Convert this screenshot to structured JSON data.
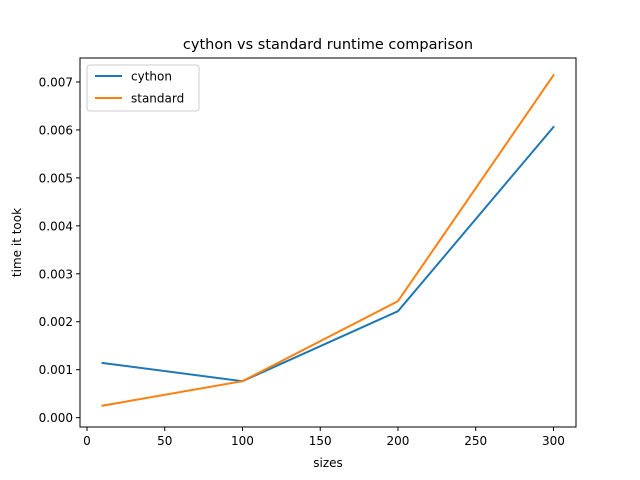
{
  "chart_data": {
    "type": "line",
    "title": "cython vs standard runtime comparison",
    "xlabel": "sizes",
    "ylabel": "time it took",
    "x": [
      10,
      100,
      200,
      300
    ],
    "series": [
      {
        "name": "cython",
        "color": "#1f77b4",
        "values": [
          0.00114,
          0.00076,
          0.00222,
          0.00606
        ]
      },
      {
        "name": "standard",
        "color": "#ff7f0e",
        "values": [
          0.00025,
          0.00076,
          0.00243,
          0.00714
        ]
      }
    ],
    "xlim": [
      -4.5,
      314.5
    ],
    "ylim": [
      -0.000195,
      0.0075
    ],
    "xticks": [
      0,
      50,
      100,
      150,
      200,
      250,
      300
    ],
    "xtick_labels": [
      "0",
      "50",
      "100",
      "150",
      "200",
      "250",
      "300"
    ],
    "yticks": [
      0.0,
      0.001,
      0.002,
      0.003,
      0.004,
      0.005,
      0.006,
      0.007
    ],
    "ytick_labels": [
      "0.000",
      "0.001",
      "0.002",
      "0.003",
      "0.004",
      "0.005",
      "0.006",
      "0.007"
    ],
    "grid": false,
    "legend_position": "upper-left"
  }
}
